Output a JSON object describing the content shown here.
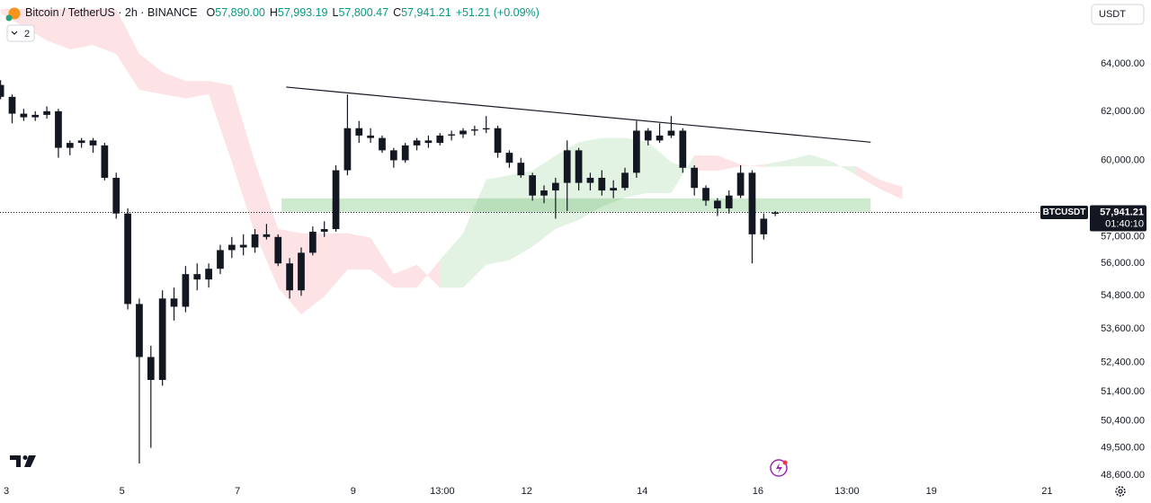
{
  "chart_data": {
    "type": "candlestick",
    "header": {
      "symbol": "Bitcoin / TetherUS · 2h · BINANCE",
      "ohlc": [
        {
          "key": "O",
          "value": "57,890.00"
        },
        {
          "key": "H",
          "value": "57,993.19"
        },
        {
          "key": "L",
          "value": "57,800.47"
        },
        {
          "key": "C",
          "value": "57,941.21"
        }
      ],
      "change": "+51.21 (+0.09%)",
      "indicators_button": "2",
      "currency": "USDT"
    },
    "log_scale": true,
    "grid": false,
    "up_color": "#131722",
    "down_color": "#131722",
    "xlim": [
      2.89,
      21.71
    ],
    "xticks": [
      {
        "value": 3,
        "label": "3"
      },
      {
        "value": 5,
        "label": "5"
      },
      {
        "value": 7,
        "label": "7"
      },
      {
        "value": 9,
        "label": "9"
      },
      {
        "value": 10.54,
        "label": "13:00"
      },
      {
        "value": 12,
        "label": "12"
      },
      {
        "value": 14,
        "label": "14"
      },
      {
        "value": 16,
        "label": "16"
      },
      {
        "value": 17.54,
        "label": "13:00"
      },
      {
        "value": 19,
        "label": "19"
      },
      {
        "value": 21,
        "label": "21"
      }
    ],
    "ylim": [
      48370,
      66790
    ],
    "yticks": [
      {
        "value": 64000,
        "label": "64,000.00"
      },
      {
        "value": 62000,
        "label": "62,000.00"
      },
      {
        "value": 60000,
        "label": "60,000.00"
      },
      {
        "value": 57000,
        "label": "57,000.00"
      },
      {
        "value": 56000,
        "label": "56,000.00"
      },
      {
        "value": 54800,
        "label": "54,800.00"
      },
      {
        "value": 53600,
        "label": "53,600.00"
      },
      {
        "value": 52400,
        "label": "52,400.00"
      },
      {
        "value": 51400,
        "label": "51,400.00"
      },
      {
        "value": 50400,
        "label": "50,400.00"
      },
      {
        "value": 49500,
        "label": "49,500.00"
      },
      {
        "value": 48600,
        "label": "48,600.00"
      }
    ],
    "x": [
      2.9,
      3.1,
      3.3,
      3.5,
      3.7,
      3.9,
      4.1,
      4.3,
      4.5,
      4.7,
      4.9,
      5.1,
      5.3,
      5.5,
      5.7,
      5.9,
      6.1,
      6.3,
      6.5,
      6.7,
      6.9,
      7.1,
      7.3,
      7.5,
      7.7,
      7.9,
      8.1,
      8.3,
      8.5,
      8.7,
      8.9,
      9.1,
      9.3,
      9.5,
      9.7,
      9.9,
      10.1,
      10.3,
      10.5,
      10.7,
      10.9,
      11.1,
      11.3,
      11.5,
      11.7,
      11.9,
      12.1,
      12.3,
      12.5,
      12.7,
      12.9,
      13.1,
      13.3,
      13.5,
      13.7,
      13.9,
      14.1,
      14.3,
      14.5,
      14.7,
      14.9,
      15.1,
      15.3,
      15.5,
      15.7,
      15.9,
      16.1,
      16.3
    ],
    "open": [
      63100,
      62600,
      61900,
      61750,
      61850,
      62000,
      60500,
      60700,
      60800,
      60600,
      59300,
      57900,
      54500,
      52600,
      51800,
      54700,
      54400,
      55600,
      55400,
      55800,
      56500,
      56700,
      56600,
      57100,
      57000,
      56000,
      55000,
      56400,
      57200,
      57300,
      59600,
      61300,
      61000,
      60900,
      60400,
      60000,
      60600,
      60800,
      60700,
      61000,
      61050,
      61200,
      61250,
      61300,
      60300,
      59900,
      59400,
      58600,
      58800,
      59100,
      60400,
      59100,
      59300,
      58800,
      58900,
      59500,
      61200,
      60800,
      61000,
      61200,
      59700,
      58900,
      58400,
      58100,
      58600,
      59500,
      57100,
      57890
    ],
    "high": [
      63300,
      62700,
      62100,
      62000,
      62200,
      62100,
      60800,
      60900,
      60900,
      60700,
      59500,
      58100,
      54700,
      53000,
      55000,
      55100,
      55900,
      56000,
      56000,
      56700,
      57000,
      57100,
      57300,
      57500,
      57100,
      56200,
      56600,
      57400,
      57600,
      59800,
      62700,
      61600,
      61300,
      61000,
      60500,
      60700,
      60900,
      61000,
      61100,
      61200,
      61300,
      61400,
      61800,
      61400,
      60400,
      60100,
      59500,
      59000,
      59300,
      60800,
      60500,
      59500,
      59600,
      59200,
      59700,
      61600,
      61300,
      61500,
      61800,
      61300,
      59800,
      59000,
      58500,
      58800,
      59800,
      59600,
      57900,
      57993.19
    ],
    "low": [
      62500,
      61500,
      61600,
      61600,
      61700,
      60100,
      60200,
      60500,
      60300,
      59200,
      57700,
      54300,
      48985,
      49500,
      51600,
      53900,
      54200,
      55000,
      55100,
      55600,
      56200,
      56300,
      56400,
      56900,
      55900,
      54700,
      54800,
      56300,
      57000,
      57200,
      59400,
      60700,
      60700,
      60300,
      59700,
      59900,
      60400,
      60500,
      60600,
      60800,
      60900,
      61000,
      61100,
      60100,
      59700,
      59300,
      58400,
      58300,
      57700,
      58000,
      58800,
      58800,
      58600,
      58500,
      58800,
      59300,
      60600,
      60700,
      60900,
      59500,
      58600,
      58200,
      57800,
      57900,
      58500,
      56000,
      56900,
      57800.47
    ],
    "close": [
      62600,
      61900,
      61750,
      61850,
      62000,
      60500,
      60700,
      60800,
      60600,
      59300,
      57900,
      54500,
      52600,
      51800,
      54700,
      54400,
      55600,
      55400,
      55800,
      56500,
      56700,
      56600,
      57100,
      57000,
      56000,
      55000,
      56400,
      57200,
      57300,
      59600,
      61300,
      61000,
      60900,
      60400,
      60000,
      60600,
      60800,
      60700,
      61000,
      61050,
      61200,
      61250,
      61300,
      60300,
      59900,
      59400,
      58600,
      58800,
      59100,
      60400,
      59100,
      59300,
      58800,
      58900,
      59500,
      61200,
      60800,
      61000,
      61200,
      59700,
      58900,
      58400,
      58100,
      58600,
      59500,
      57100,
      57700,
      57941.21
    ],
    "cloud": {
      "up_color": "rgba(76,175,80,0.16)",
      "down_color": "rgba(242,54,69,0.14)",
      "x": [
        2.9,
        3.3,
        3.7,
        4.1,
        4.5,
        4.9,
        5.3,
        5.7,
        6.1,
        6.5,
        6.9,
        7.3,
        7.7,
        8.1,
        8.5,
        8.9,
        9.3,
        9.7,
        10.1,
        10.5,
        10.9,
        11.3,
        11.7,
        12.1,
        12.5,
        12.9,
        13.3,
        13.7,
        14.1,
        14.5,
        14.9,
        15.3,
        15.7,
        16.1,
        16.5,
        16.9,
        17.3,
        17.7,
        18.1,
        18.5
      ],
      "span_a": [
        66190,
        65600,
        65010,
        64620,
        64810,
        64420,
        62890,
        62710,
        62530,
        62710,
        59930,
        57140,
        55100,
        54120,
        54770,
        55770,
        55770,
        55100,
        55100,
        56120,
        57140,
        59230,
        59400,
        59580,
        60190,
        60730,
        60900,
        60900,
        60730,
        59930,
        59580,
        59580,
        59760,
        59830,
        60000,
        60230,
        59930,
        59400,
        58870,
        58450
      ],
      "span_b": [
        66390,
        66390,
        66390,
        66390,
        66390,
        66390,
        64420,
        63650,
        63270,
        63270,
        63080,
        59930,
        57310,
        57140,
        57140,
        57140,
        56970,
        55600,
        55950,
        55100,
        55100,
        55950,
        56120,
        56630,
        57310,
        57650,
        58170,
        58520,
        58700,
        58700,
        60190,
        60190,
        59830,
        59730,
        59760,
        59760,
        59760,
        59760,
        59230,
        58940
      ]
    },
    "trendline": {
      "color": "#131722",
      "x": [
        7.84,
        17.95
      ],
      "y": [
        63010,
        60730
      ]
    },
    "zone": {
      "color": "rgba(76,175,80,0.28)",
      "x": [
        7.76,
        17.95
      ],
      "y": [
        57970,
        58490
      ]
    },
    "symbol_tag": "BTCUSDT",
    "last_price": {
      "value": 57941.21,
      "label": "57,941.21"
    },
    "countdown": "01:40:10"
  }
}
